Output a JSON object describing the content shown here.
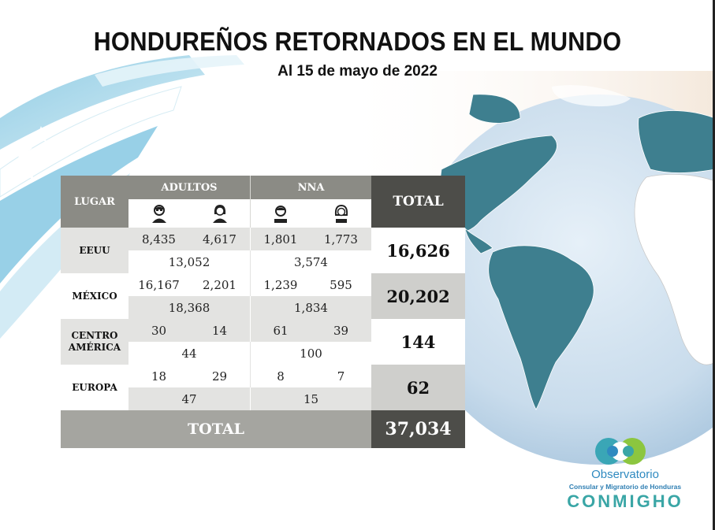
{
  "title": "HONDUREÑOS RETORNADOS EN EL MUNDO",
  "subtitle": "Al 15 de mayo de 2022",
  "table": {
    "col_lugar": "LUGAR",
    "col_adultos": "ADULTOS",
    "col_nna": "NNA",
    "col_total": "TOTAL",
    "icons": [
      "man-icon",
      "woman-icon",
      "boy-icon",
      "girl-icon"
    ],
    "rows": [
      {
        "lugar": "EEUU",
        "h": "8,435",
        "m": "4,617",
        "n": "1,801",
        "na": "1,773",
        "adultos_sub": "13,052",
        "nna_sub": "3,574",
        "total": "16,626"
      },
      {
        "lugar": "MÉXICO",
        "h": "16,167",
        "m": "2,201",
        "n": "1,239",
        "na": "595",
        "adultos_sub": "18,368",
        "nna_sub": "1,834",
        "total": "20,202"
      },
      {
        "lugar": "CENTRO AMÉRICA",
        "h": "30",
        "m": "14",
        "n": "61",
        "na": "39",
        "adultos_sub": "44",
        "nna_sub": "100",
        "total": "144"
      },
      {
        "lugar": "EUROPA",
        "h": "18",
        "m": "29",
        "n": "8",
        "na": "7",
        "adultos_sub": "47",
        "nna_sub": "15",
        "total": "62"
      }
    ],
    "footer_label": "TOTAL",
    "grand_total": "37,034"
  },
  "logo": {
    "name": "Observatorio",
    "sub": "Consular y Migratorio de Honduras",
    "brand": "CONMIGHO"
  },
  "colors": {
    "header_gray": "#8b8b85",
    "dark_gray": "#4d4d49",
    "globe_blue": "#c8dced",
    "land_teal": "#3e7f8f"
  }
}
